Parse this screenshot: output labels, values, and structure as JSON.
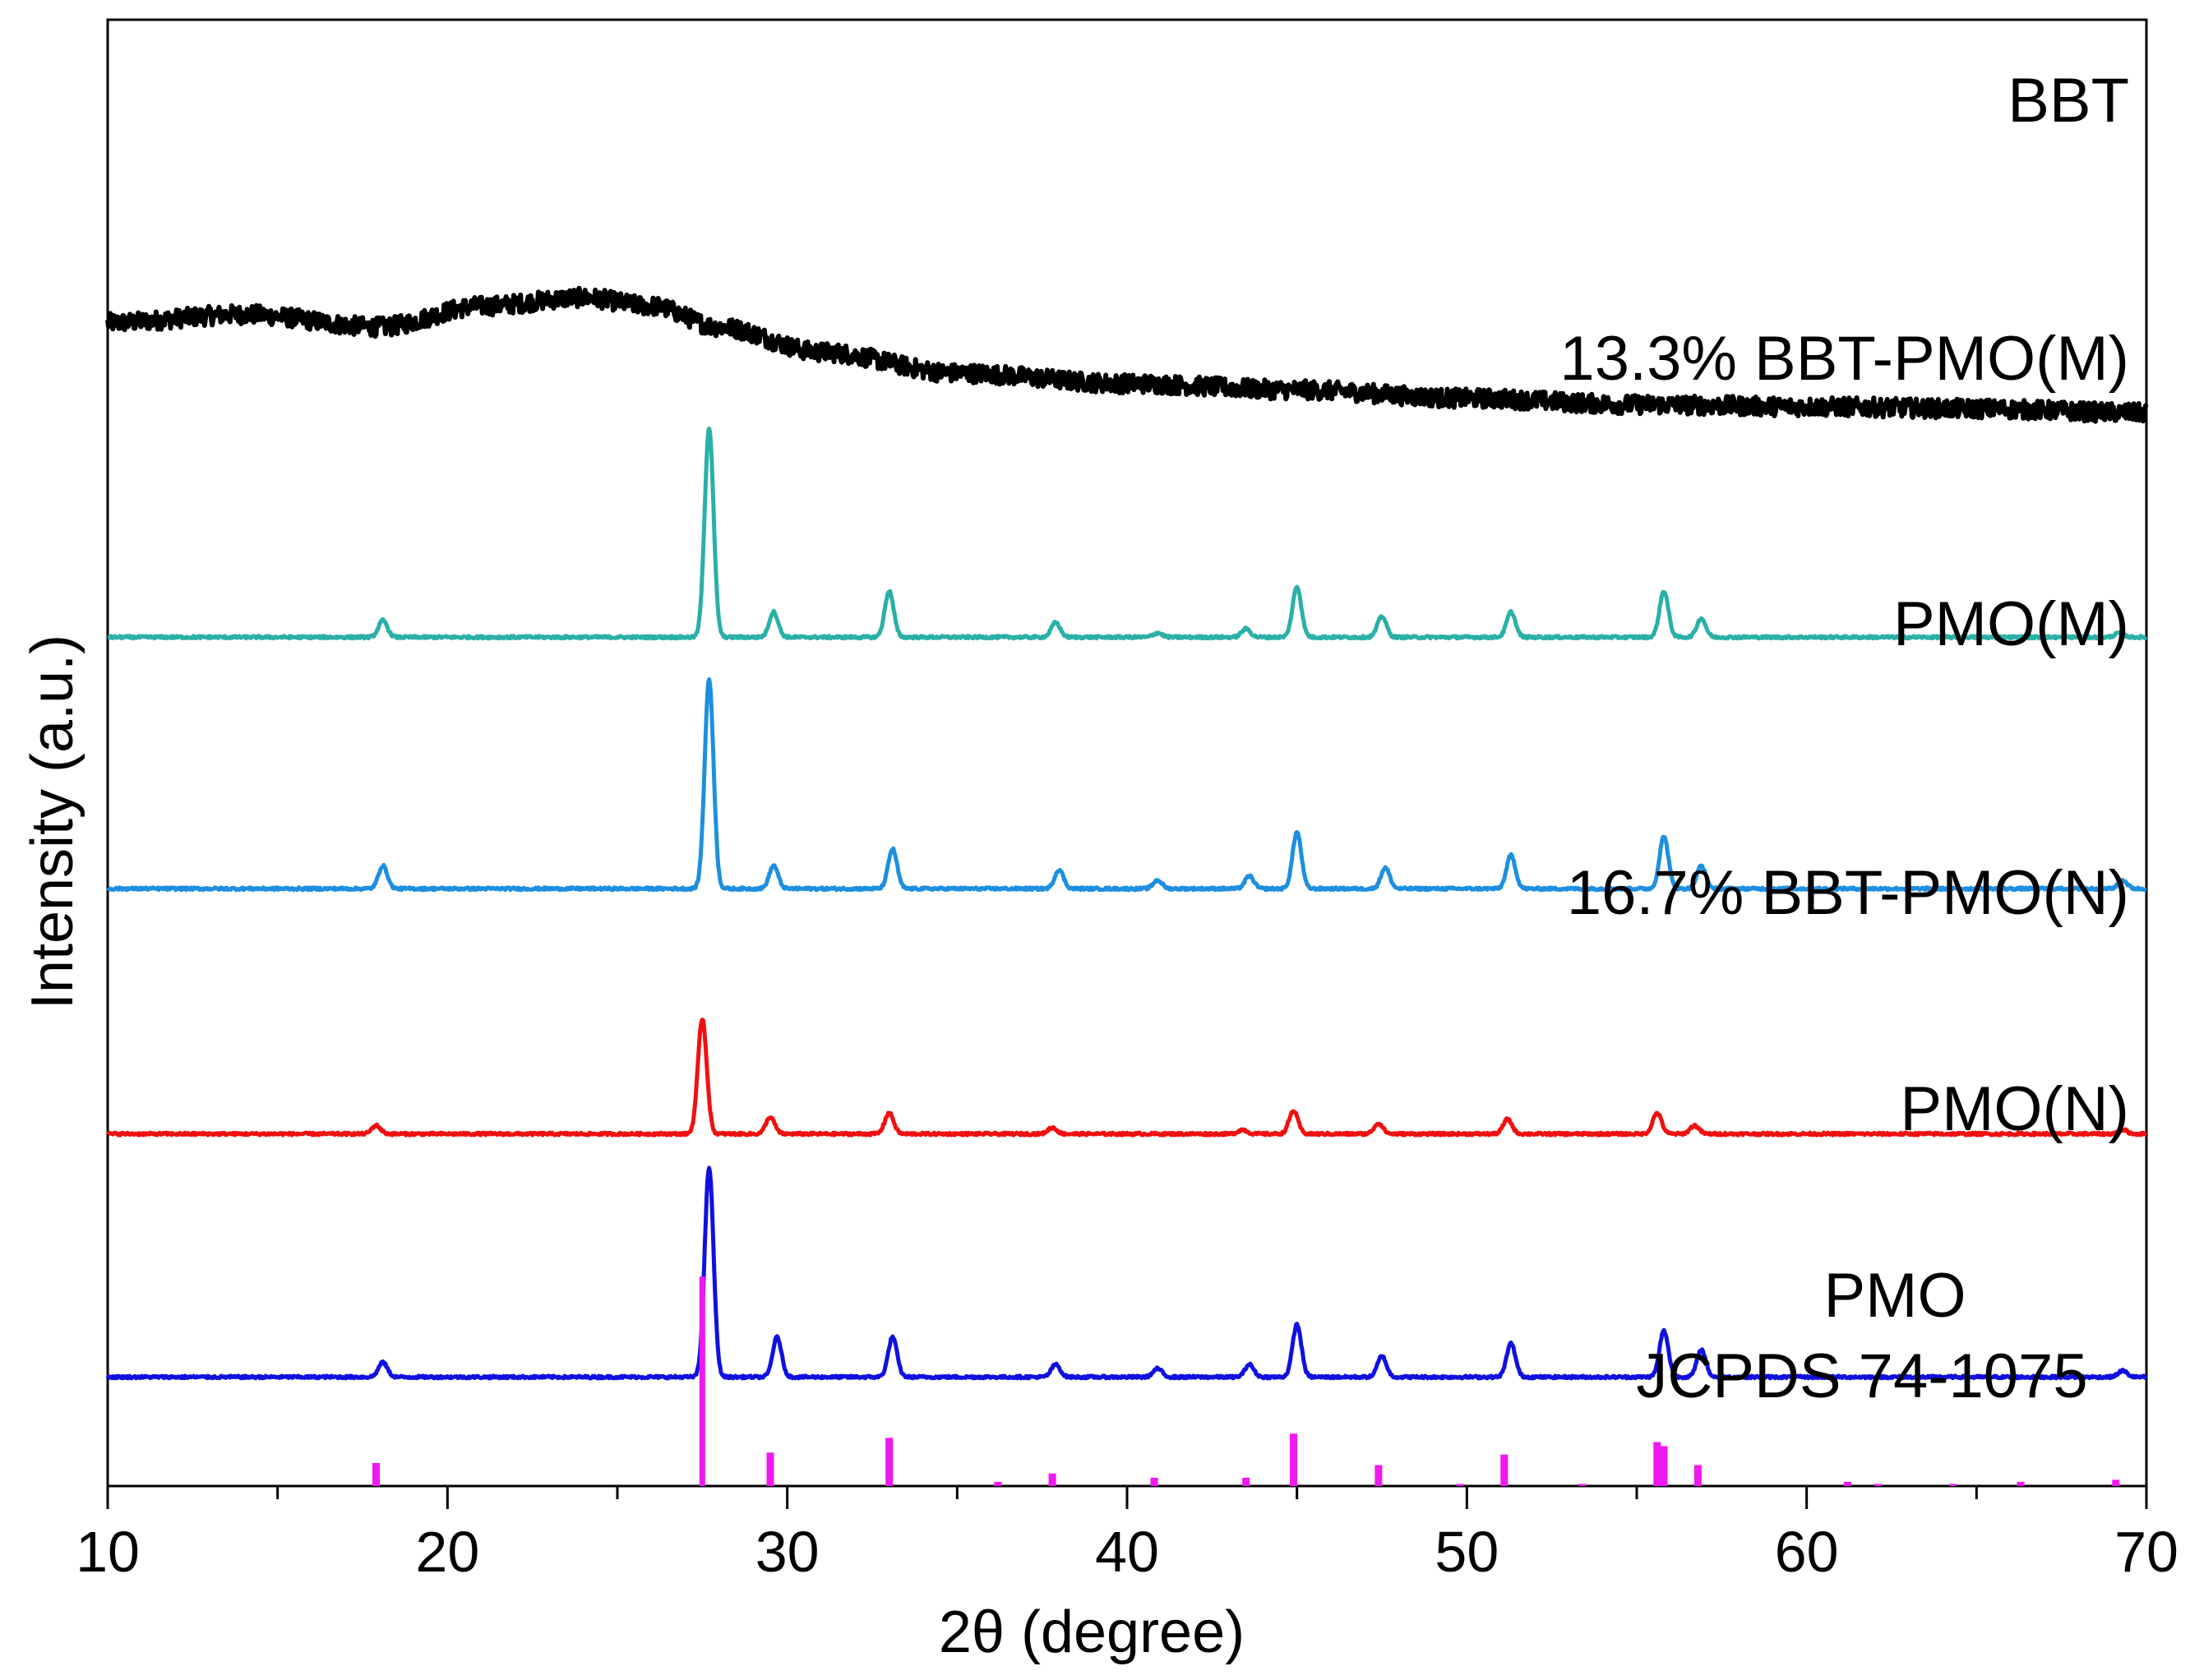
{
  "chart_data": {
    "type": "line",
    "title": "",
    "xlabel": "2θ (degree)",
    "ylabel": "Intensity (a.u.)",
    "xlim": [
      10,
      70
    ],
    "xticks": [
      10,
      20,
      30,
      40,
      50,
      60,
      70
    ],
    "xtick_labels": [
      "10",
      "20",
      "30",
      "40",
      "50",
      "60",
      "70"
    ],
    "yticks_shown": false,
    "series": [
      {
        "name": "BBT",
        "label_lines": [
          "BBT"
        ],
        "color": "#000000",
        "style": "amorphous",
        "offset": 5.55,
        "baseline_profile": [
          [
            10,
            0.0
          ],
          [
            14,
            0.04
          ],
          [
            18,
            -0.02
          ],
          [
            21,
            0.08
          ],
          [
            24,
            0.12
          ],
          [
            26,
            0.08
          ],
          [
            28,
            -0.02
          ],
          [
            31,
            -0.14
          ],
          [
            35,
            -0.24
          ],
          [
            40,
            -0.29
          ],
          [
            45,
            -0.32
          ],
          [
            50,
            -0.36
          ],
          [
            55,
            -0.39
          ],
          [
            60,
            -0.4
          ],
          [
            65,
            -0.41
          ],
          [
            70,
            -0.43
          ]
        ],
        "noise": 0.045
      },
      {
        "name": "13.3% BBT-PMO(M)",
        "label_lines": [
          "13.3% BBT-PMO(M)"
        ],
        "color": "#2ab0a7",
        "style": "xrd",
        "offset": 4.05,
        "peaks": [
          [
            18.1,
            0.08
          ],
          [
            27.7,
            1.0
          ],
          [
            29.6,
            0.12
          ],
          [
            33.0,
            0.22
          ],
          [
            37.9,
            0.07
          ],
          [
            40.9,
            0.02
          ],
          [
            43.5,
            0.04
          ],
          [
            45.0,
            0.24
          ],
          [
            47.5,
            0.1
          ],
          [
            51.3,
            0.12
          ],
          [
            55.8,
            0.22
          ],
          [
            56.9,
            0.09
          ],
          [
            69.2,
            0.02
          ]
        ]
      },
      {
        "name": "PMO(M)",
        "label_lines": [
          "PMO(M)"
        ],
        "color": "#1e8fe0",
        "style": "xrd",
        "offset": 2.85,
        "peaks": [
          [
            18.1,
            0.11
          ],
          [
            27.7,
            1.0
          ],
          [
            29.6,
            0.11
          ],
          [
            33.1,
            0.19
          ],
          [
            38.0,
            0.09
          ],
          [
            40.9,
            0.04
          ],
          [
            43.6,
            0.06
          ],
          [
            45.0,
            0.27
          ],
          [
            47.6,
            0.1
          ],
          [
            51.3,
            0.16
          ],
          [
            55.8,
            0.25
          ],
          [
            56.9,
            0.11
          ],
          [
            69.3,
            0.04
          ]
        ]
      },
      {
        "name": "16.7% BBT-PMO(N)",
        "label_lines": [
          "16.7% BBT-PMO(N)"
        ],
        "color": "#f01010",
        "style": "xrd",
        "offset": 1.68,
        "peaks": [
          [
            17.9,
            0.04
          ],
          [
            27.5,
            0.55
          ],
          [
            29.5,
            0.08
          ],
          [
            33.0,
            0.1
          ],
          [
            37.8,
            0.03
          ],
          [
            43.4,
            0.02
          ],
          [
            44.9,
            0.11
          ],
          [
            47.4,
            0.05
          ],
          [
            51.2,
            0.07
          ],
          [
            55.6,
            0.1
          ],
          [
            56.7,
            0.04
          ],
          [
            69.3,
            0.02
          ]
        ]
      },
      {
        "name": "PMO(N)",
        "label_lines": [
          "PMO(N)"
        ],
        "color": "#1010e0",
        "style": "xrd",
        "offset": 0.52,
        "peaks": [
          [
            18.1,
            0.07
          ],
          [
            27.7,
            1.0
          ],
          [
            29.7,
            0.19
          ],
          [
            33.1,
            0.19
          ],
          [
            37.9,
            0.06
          ],
          [
            40.9,
            0.04
          ],
          [
            43.6,
            0.06
          ],
          [
            45.0,
            0.25
          ],
          [
            47.5,
            0.1
          ],
          [
            51.3,
            0.16
          ],
          [
            55.8,
            0.22
          ],
          [
            56.9,
            0.13
          ],
          [
            69.3,
            0.03
          ]
        ]
      },
      {
        "name": "PMO JCPDS 74-1075",
        "label_lines": [
          "PMO",
          "JCPDS 74-1075"
        ],
        "color": "#f018f0",
        "style": "sticks",
        "offset": 0.0,
        "sticks": [
          [
            17.9,
            0.11
          ],
          [
            27.5,
            1.0
          ],
          [
            29.5,
            0.16
          ],
          [
            33.0,
            0.23
          ],
          [
            36.2,
            0.02
          ],
          [
            37.8,
            0.06
          ],
          [
            40.8,
            0.04
          ],
          [
            43.5,
            0.04
          ],
          [
            44.9,
            0.25
          ],
          [
            47.4,
            0.1
          ],
          [
            49.8,
            0.01
          ],
          [
            51.1,
            0.15
          ],
          [
            53.4,
            0.01
          ],
          [
            55.6,
            0.21
          ],
          [
            55.8,
            0.19
          ],
          [
            56.8,
            0.1
          ],
          [
            61.2,
            0.02
          ],
          [
            62.1,
            0.01
          ],
          [
            64.3,
            0.01
          ],
          [
            66.3,
            0.02
          ],
          [
            69.1,
            0.03
          ]
        ]
      }
    ]
  }
}
